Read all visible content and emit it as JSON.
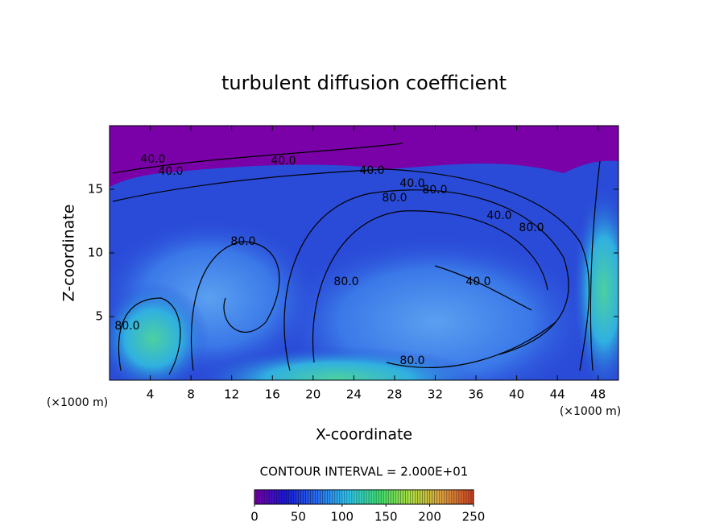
{
  "chart_data": {
    "type": "contour",
    "title": "turbulent diffusion coefficient",
    "x_label": "X-coordinate",
    "y_label": "Z-coordinate",
    "x_unit_label": "(×1000 m)",
    "y_unit_label": "(×1000 m)",
    "xlim": [
      0,
      50
    ],
    "xticks": [
      4,
      8,
      12,
      16,
      20,
      24,
      28,
      32,
      36,
      40,
      44,
      48
    ],
    "ylim": [
      0,
      20
    ],
    "yticks": [
      5,
      10,
      15
    ],
    "contour_interval_label": "CONTOUR INTERVAL = 2.000E+01",
    "contour_labels": [
      "40.0",
      "40.0",
      "40.0",
      "40.0",
      "40.0",
      "80.0",
      "80.0",
      "40.0",
      "80.0",
      "80.0",
      "40.0",
      "80.0",
      "80.0",
      "80.0"
    ],
    "colorbar": {
      "clim": [
        0,
        250
      ],
      "ticks": [
        0,
        50,
        100,
        150,
        200,
        250
      ],
      "colormap": [
        "#7a00a8",
        "#1a1ad8",
        "#2a6ff0",
        "#30c8f0",
        "#40e070",
        "#b0e040",
        "#e0a040",
        "#d04020"
      ]
    }
  }
}
